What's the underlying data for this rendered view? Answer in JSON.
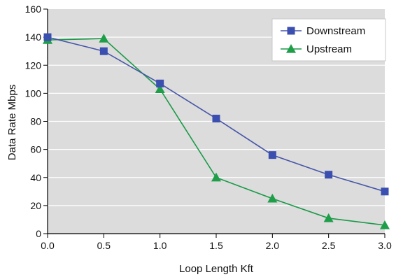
{
  "chart_data": {
    "type": "line",
    "title": "",
    "xlabel": "Loop Length Kft",
    "ylabel": "Data Rate Mbps",
    "x": [
      0.0,
      0.5,
      1.0,
      1.5,
      2.0,
      2.5,
      3.0
    ],
    "x_ticks": [
      "0.0",
      "0.5",
      "1.0",
      "1.5",
      "2.0",
      "2.5",
      "3.0"
    ],
    "y_ticks": [
      "0",
      "20",
      "40",
      "60",
      "80",
      "100",
      "120",
      "140",
      "160"
    ],
    "xlim": [
      0,
      3
    ],
    "ylim": [
      0,
      160
    ],
    "grid": "horizontal",
    "legend_position": "top-right",
    "plot_background": "#dcdcdc",
    "series": [
      {
        "name": "Downstream",
        "marker": "square",
        "color": "#4656a8",
        "marker_color": "#3b4fb0",
        "values": [
          140,
          130,
          107,
          82,
          56,
          42,
          30
        ]
      },
      {
        "name": "Upstream",
        "marker": "triangle",
        "color": "#1a9a48",
        "marker_color": "#1f9e4a",
        "values": [
          138,
          139,
          103,
          40,
          25,
          11,
          6
        ]
      }
    ]
  }
}
